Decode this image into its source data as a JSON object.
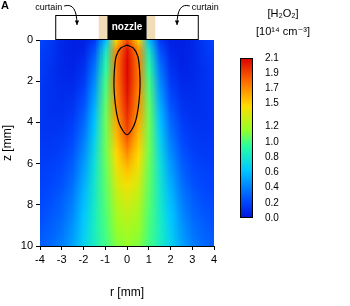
{
  "chart_data": {
    "type": "heatmap",
    "panel_label": "A",
    "annotations": [
      "curtain",
      "curtain",
      "nozzle"
    ],
    "xlabel": "r [mm]",
    "ylabel": "z [mm]",
    "xlim": [
      -4,
      4
    ],
    "xticks": [
      -4,
      -3,
      -2,
      -1,
      0,
      1,
      2,
      3,
      4
    ],
    "ylim": [
      10,
      0
    ],
    "yticks": [
      0,
      2,
      4,
      6,
      8,
      10
    ],
    "grid": false,
    "x": [
      -4,
      -3.5,
      -3,
      -2.5,
      -2,
      -1.5,
      -1,
      -0.5,
      0,
      0.5,
      1,
      1.5,
      2,
      2.5,
      3,
      3.5,
      4
    ],
    "y": [
      0,
      0.5,
      1,
      1.5,
      2,
      2.5,
      3,
      3.5,
      4,
      4.5,
      5,
      5.5,
      6,
      6.5,
      7,
      7.5,
      8,
      8.5,
      9,
      9.5,
      10
    ],
    "cells": [
      [
        0.2,
        0.15,
        0.08,
        0.05,
        0.05,
        0.15,
        0.6,
        1.5,
        1.9,
        1.5,
        0.6,
        0.15,
        0.05,
        0.05,
        0.08,
        0.15,
        0.2
      ],
      [
        0.18,
        0.14,
        0.08,
        0.05,
        0.07,
        0.25,
        0.8,
        1.7,
        2.05,
        1.7,
        0.8,
        0.25,
        0.07,
        0.05,
        0.08,
        0.14,
        0.18
      ],
      [
        0.17,
        0.13,
        0.08,
        0.06,
        0.1,
        0.32,
        0.9,
        1.75,
        2.08,
        1.75,
        0.9,
        0.32,
        0.1,
        0.06,
        0.08,
        0.13,
        0.17
      ],
      [
        0.16,
        0.12,
        0.08,
        0.07,
        0.13,
        0.38,
        0.95,
        1.75,
        2.08,
        1.75,
        0.95,
        0.38,
        0.13,
        0.07,
        0.08,
        0.12,
        0.16
      ],
      [
        0.15,
        0.12,
        0.09,
        0.09,
        0.16,
        0.43,
        1.0,
        1.75,
        2.07,
        1.75,
        1.0,
        0.43,
        0.16,
        0.09,
        0.09,
        0.12,
        0.15
      ],
      [
        0.14,
        0.12,
        0.1,
        0.11,
        0.2,
        0.48,
        1.02,
        1.72,
        2.05,
        1.72,
        1.02,
        0.48,
        0.2,
        0.11,
        0.1,
        0.12,
        0.14
      ],
      [
        0.14,
        0.12,
        0.11,
        0.13,
        0.24,
        0.53,
        1.05,
        1.7,
        2.02,
        1.7,
        1.05,
        0.53,
        0.24,
        0.13,
        0.11,
        0.12,
        0.14
      ],
      [
        0.14,
        0.12,
        0.12,
        0.15,
        0.28,
        0.58,
        1.07,
        1.67,
        1.98,
        1.67,
        1.07,
        0.58,
        0.28,
        0.15,
        0.12,
        0.12,
        0.14
      ],
      [
        0.14,
        0.13,
        0.13,
        0.18,
        0.32,
        0.62,
        1.08,
        1.62,
        1.94,
        1.62,
        1.08,
        0.62,
        0.32,
        0.18,
        0.13,
        0.13,
        0.14
      ],
      [
        0.14,
        0.14,
        0.15,
        0.2,
        0.36,
        0.66,
        1.08,
        1.58,
        1.89,
        1.58,
        1.08,
        0.66,
        0.36,
        0.2,
        0.15,
        0.14,
        0.14
      ],
      [
        0.15,
        0.15,
        0.17,
        0.23,
        0.4,
        0.7,
        1.08,
        1.53,
        1.8,
        1.53,
        1.08,
        0.7,
        0.4,
        0.23,
        0.17,
        0.15,
        0.15
      ],
      [
        0.16,
        0.16,
        0.19,
        0.26,
        0.44,
        0.73,
        1.08,
        1.48,
        1.7,
        1.48,
        1.08,
        0.73,
        0.44,
        0.26,
        0.19,
        0.16,
        0.16
      ],
      [
        0.17,
        0.18,
        0.21,
        0.29,
        0.48,
        0.76,
        1.07,
        1.43,
        1.6,
        1.43,
        1.07,
        0.76,
        0.48,
        0.29,
        0.21,
        0.18,
        0.17
      ],
      [
        0.18,
        0.2,
        0.23,
        0.32,
        0.51,
        0.78,
        1.06,
        1.38,
        1.52,
        1.38,
        1.06,
        0.78,
        0.51,
        0.32,
        0.23,
        0.2,
        0.18
      ],
      [
        0.19,
        0.21,
        0.25,
        0.35,
        0.55,
        0.8,
        1.05,
        1.33,
        1.45,
        1.33,
        1.05,
        0.8,
        0.55,
        0.35,
        0.25,
        0.21,
        0.19
      ],
      [
        0.2,
        0.23,
        0.28,
        0.38,
        0.58,
        0.81,
        1.04,
        1.28,
        1.38,
        1.28,
        1.04,
        0.81,
        0.58,
        0.38,
        0.28,
        0.23,
        0.2
      ],
      [
        0.22,
        0.25,
        0.3,
        0.41,
        0.6,
        0.82,
        1.03,
        1.24,
        1.32,
        1.24,
        1.03,
        0.82,
        0.6,
        0.41,
        0.3,
        0.25,
        0.22
      ],
      [
        0.23,
        0.27,
        0.32,
        0.44,
        0.63,
        0.83,
        1.02,
        1.2,
        1.27,
        1.2,
        1.02,
        0.83,
        0.63,
        0.44,
        0.32,
        0.27,
        0.23
      ],
      [
        0.25,
        0.29,
        0.35,
        0.47,
        0.65,
        0.84,
        1.01,
        1.17,
        1.23,
        1.17,
        1.01,
        0.84,
        0.65,
        0.47,
        0.35,
        0.29,
        0.25
      ],
      [
        0.27,
        0.31,
        0.37,
        0.49,
        0.67,
        0.84,
        1.0,
        1.14,
        1.19,
        1.14,
        1.0,
        0.84,
        0.67,
        0.49,
        0.37,
        0.31,
        0.27
      ],
      [
        0.28,
        0.33,
        0.4,
        0.52,
        0.69,
        0.84,
        0.99,
        1.11,
        1.16,
        1.11,
        0.99,
        0.84,
        0.69,
        0.52,
        0.4,
        0.33,
        0.28
      ]
    ],
    "contour": {
      "color": "#000000",
      "x": [
        0,
        0.3,
        0.5,
        0.58,
        0.6,
        0.55,
        0.45,
        0.3,
        0,
        -0.3,
        -0.45,
        -0.55,
        -0.6,
        -0.58,
        -0.5,
        -0.3,
        0
      ],
      "y": [
        0.25,
        0.4,
        0.8,
        1.5,
        2.2,
        3.0,
        3.7,
        4.2,
        4.6,
        4.2,
        3.7,
        3.0,
        2.2,
        1.5,
        0.8,
        0.4,
        0.25
      ]
    },
    "colorbar": {
      "title": "[H₂O₂]",
      "unit": "[10¹⁴ cm⁻³]",
      "range": [
        0,
        2.1
      ],
      "ticks": [
        {
          "value": 0,
          "label": "0.0"
        },
        0.2,
        0.4,
        0.6,
        0.8,
        {
          "value": 1,
          "label": "1.0"
        },
        1.2,
        1.5,
        1.7,
        1.9,
        2.1
      ]
    }
  }
}
